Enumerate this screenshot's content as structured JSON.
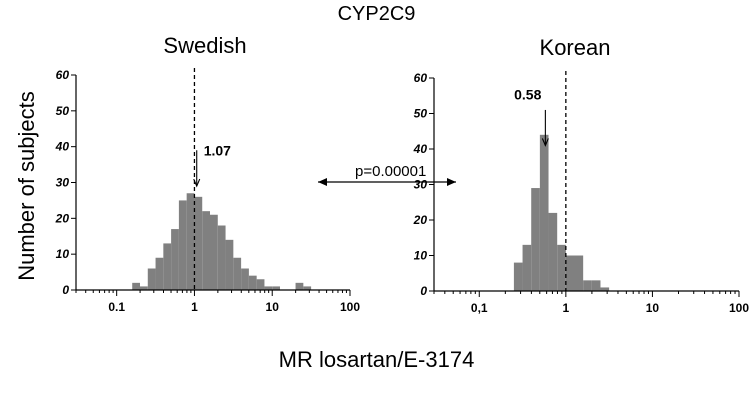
{
  "figure": {
    "title": "CYP2C9",
    "ylabel": "Number of subjects",
    "xlabel": "MR losartan/E-3174",
    "comparison_label": "p=0.00001"
  },
  "colors": {
    "bar": "#808080",
    "axis": "#000000"
  },
  "chart_data": [
    {
      "type": "bar",
      "title": "Swedish",
      "x_scale": "log",
      "xlim": [
        0.03,
        100
      ],
      "ylim": [
        0,
        60
      ],
      "x_ticks": [
        0.1,
        1,
        10,
        100
      ],
      "x_tick_labels": [
        "0.1",
        "1",
        "10",
        "100"
      ],
      "y_ticks": [
        0,
        10,
        20,
        30,
        40,
        50,
        60
      ],
      "bins_log10": [
        -0.8,
        -0.7,
        -0.6,
        -0.5,
        -0.4,
        -0.3,
        -0.2,
        -0.1,
        0.0,
        0.1,
        0.2,
        0.3,
        0.4,
        0.5,
        0.6,
        0.7,
        0.8,
        0.9,
        1.0,
        1.1,
        1.2,
        1.3,
        1.4
      ],
      "bin_width_log10": 0.1,
      "values": [
        2,
        1,
        6,
        9,
        13,
        17,
        25,
        27,
        26,
        22,
        21,
        18,
        14,
        9,
        6,
        4,
        3,
        1,
        1,
        0,
        0,
        2,
        1
      ],
      "marker": {
        "value": 1.07,
        "label": "1.07"
      },
      "median_line": 1
    },
    {
      "type": "bar",
      "title": "Korean",
      "x_scale": "log",
      "xlim": [
        0.03,
        100
      ],
      "ylim": [
        0,
        60
      ],
      "x_ticks": [
        0.1,
        1,
        10,
        100
      ],
      "x_tick_labels": [
        "0,1",
        "1",
        "10",
        "100"
      ],
      "y_ticks": [
        0,
        10,
        20,
        30,
        40,
        50,
        60
      ],
      "bins_log10": [
        -0.6,
        -0.5,
        -0.4,
        -0.3,
        -0.2,
        -0.1,
        0.0,
        0.1,
        0.2,
        0.3,
        0.4
      ],
      "bin_width_log10": 0.1,
      "values": [
        8,
        13,
        29,
        44,
        22,
        13,
        10,
        10,
        3,
        3,
        1
      ],
      "marker": {
        "value": 0.58,
        "label": "0.58"
      },
      "median_line": 1
    }
  ]
}
